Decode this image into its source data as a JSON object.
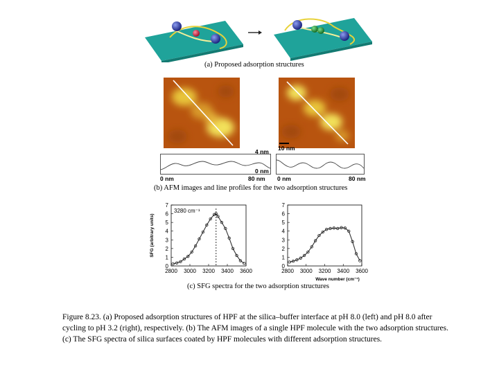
{
  "panel_a": {
    "caption": "(a) Proposed adsorption structures"
  },
  "panel_b": {
    "caption": "(b) AFM images and line profiles for the two adsorption structures",
    "scale_bar": "10 nm",
    "profile_y_top": "4 nm",
    "profile_y_bottom": "0 nm",
    "left_x_start": "0 nm",
    "left_x_end": "80 nm",
    "right_x_start": "0 nm",
    "right_x_end": "80 nm"
  },
  "panel_c": {
    "caption": "(c) SFG spectra for the two adsorption structures",
    "annotation": "3280 cm⁻¹",
    "ylabel": "SFG (arbitrary units)",
    "xlabel": "Wave number (cm⁻¹)"
  },
  "chart_data": [
    {
      "type": "scatter",
      "ylabel": "SFG (arbitrary units)",
      "xlabel": "",
      "xlim": [
        2800,
        3600
      ],
      "ylim": [
        0,
        7
      ],
      "xticks": [
        2800,
        3000,
        3200,
        3400,
        3600
      ],
      "yticks": [
        0,
        1,
        2,
        3,
        4,
        5,
        6,
        7
      ],
      "annotation": "3280 cm⁻¹",
      "annotation_x": 3280,
      "x": [
        2820,
        2860,
        2900,
        2940,
        2980,
        3020,
        3060,
        3100,
        3140,
        3180,
        3220,
        3260,
        3280,
        3300,
        3340,
        3380,
        3420,
        3460,
        3500,
        3540,
        3580
      ],
      "y": [
        0.25,
        0.35,
        0.5,
        0.8,
        1.1,
        1.6,
        2.3,
        3.1,
        3.9,
        4.7,
        5.4,
        5.9,
        6.0,
        5.7,
        5.0,
        4.3,
        3.2,
        2.0,
        1.2,
        0.6,
        0.3
      ]
    },
    {
      "type": "scatter",
      "xlabel": "Wave number (cm⁻¹)",
      "xlim": [
        2800,
        3600
      ],
      "ylim": [
        0,
        7
      ],
      "xticks": [
        2800,
        3000,
        3200,
        3400,
        3600
      ],
      "yticks": [
        0,
        1,
        2,
        3,
        4,
        5,
        6,
        7
      ],
      "x": [
        2820,
        2860,
        2900,
        2940,
        2980,
        3020,
        3060,
        3100,
        3140,
        3180,
        3220,
        3260,
        3300,
        3340,
        3380,
        3420,
        3460,
        3500,
        3540,
        3580
      ],
      "y": [
        0.45,
        0.55,
        0.7,
        0.9,
        1.2,
        1.6,
        2.2,
        2.9,
        3.5,
        3.9,
        4.2,
        4.3,
        4.35,
        4.3,
        4.4,
        4.35,
        4.0,
        2.8,
        1.4,
        0.6
      ]
    }
  ],
  "caption_text": "Figure 8.23. (a) Proposed adsorption structures of HPF at the silica–buffer interface at pH 8.0 (left) and pH 8.0 after cycling to pH 3.2 (right), respectively. (b) The AFM images of a single HPF molecule  with the two adsorption structures. (c) The SFG spectra of silica surfaces coated by HPF molecules with different adsorption structures.",
  "colors": {
    "surface": "#1fa39a",
    "domain_blue": "#2a3aa8",
    "domain_red": "#d12a4a",
    "coil_yellow": "#e8d23a",
    "afm_dark": "#b8540f",
    "afm_light": "#f2e15a"
  }
}
